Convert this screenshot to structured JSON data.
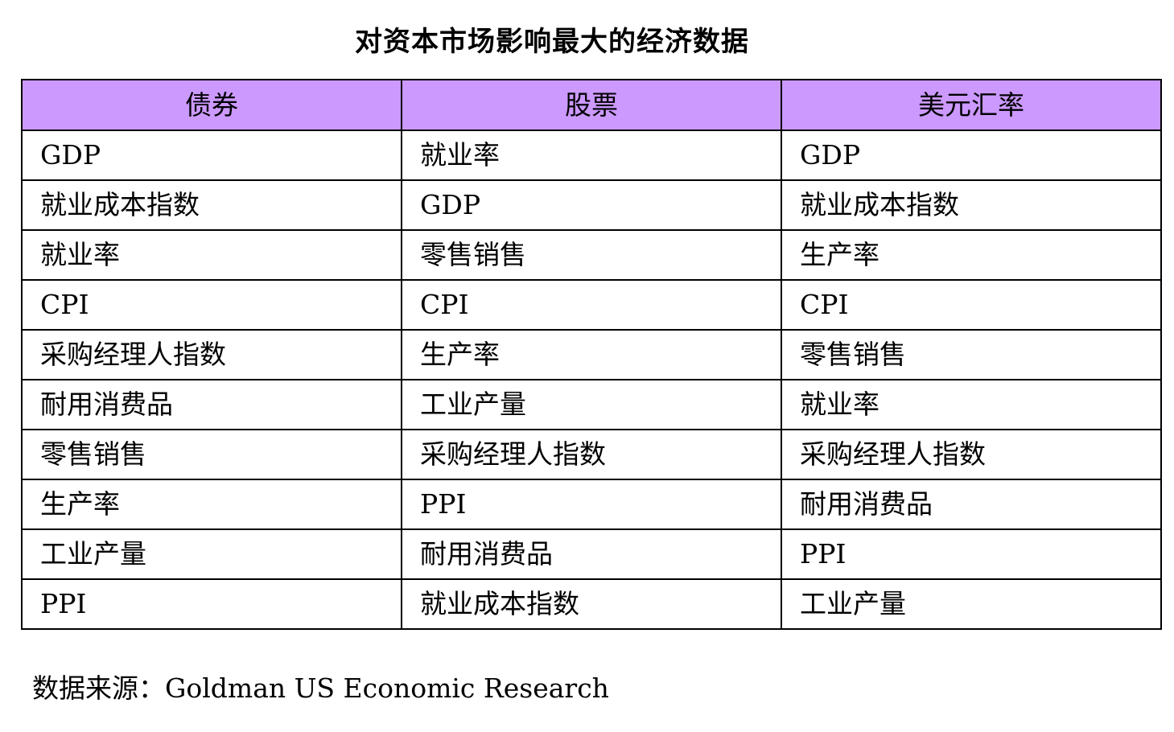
{
  "title": "对资本市场影响最大的经济数据",
  "columns": [
    "债券",
    "股票",
    "美元汇率"
  ],
  "rows": [
    [
      "GDP",
      "就业率",
      "GDP"
    ],
    [
      "就业成本指数",
      "GDP",
      "就业成本指数"
    ],
    [
      "就业率",
      "零售销售",
      "生产率"
    ],
    [
      "CPI",
      "CPI",
      "CPI"
    ],
    [
      "采购经理人指数",
      "生产率",
      "零售销售"
    ],
    [
      "耐用消费品",
      "工业产量",
      "就业率"
    ],
    [
      "零售销售",
      "采购经理人指数",
      "采购经理人指数"
    ],
    [
      "生产率",
      "PPI",
      "耐用消费品"
    ],
    [
      "工业产量",
      "耐用消费品",
      "PPI"
    ],
    [
      "PPI",
      "就业成本指数",
      "工业产量"
    ]
  ],
  "source": "数据来源：Goldman US Economic Research",
  "colors": {
    "header_bg": "#cc99ff",
    "border": "#000000",
    "text": "#000000"
  }
}
